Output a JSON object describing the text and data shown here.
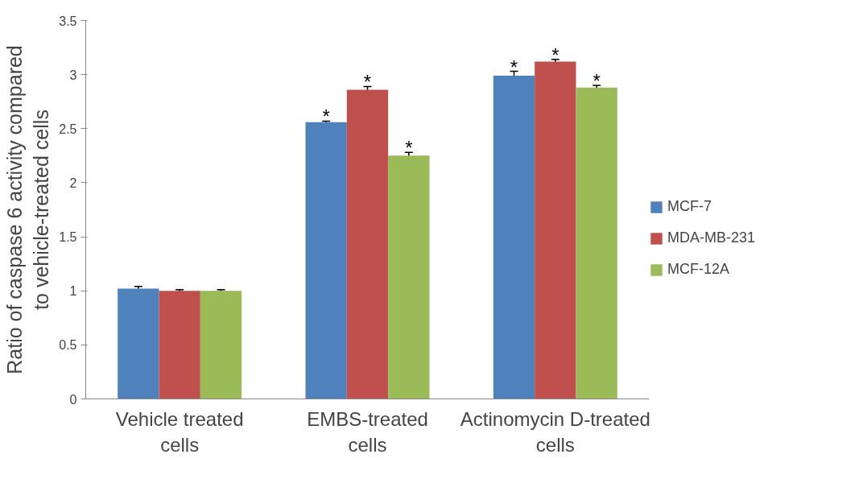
{
  "chart_data": {
    "type": "bar",
    "ylabel": "Ratio of caspase 6 activity compared to vehicle-treated cells",
    "categories": [
      "Vehicle treated cells",
      "EMBS-treated cells",
      "Actinomycin D-treated cells"
    ],
    "series": [
      {
        "name": "MCF-7",
        "color": "#4f81bd",
        "values": [
          1.02,
          2.56,
          2.99
        ],
        "errors": [
          0.02,
          0.01,
          0.04
        ],
        "value_labels": [
          null,
          "*",
          "*"
        ]
      },
      {
        "name": "MDA-MB-231",
        "color": "#c0504d",
        "values": [
          1.0,
          2.86,
          3.12
        ],
        "errors": [
          0.01,
          0.03,
          0.02
        ],
        "value_labels": [
          null,
          "*",
          "*"
        ]
      },
      {
        "name": "MCF-12A",
        "color": "#9bbb59",
        "values": [
          1.0,
          2.25,
          2.88
        ],
        "errors": [
          0.01,
          0.03,
          0.02
        ],
        "value_labels": [
          null,
          "*",
          "*"
        ]
      }
    ],
    "ylim": [
      0,
      3.5
    ],
    "yticks": [
      0,
      {
        "value": 0.5,
        "label": "0.5"
      },
      1,
      {
        "value": 1.5,
        "label": "1.5"
      },
      2,
      {
        "value": 2.5,
        "label": "2.5"
      },
      3,
      {
        "value": 3.5,
        "label": "3.5"
      }
    ],
    "grid": false,
    "legend": "right"
  }
}
